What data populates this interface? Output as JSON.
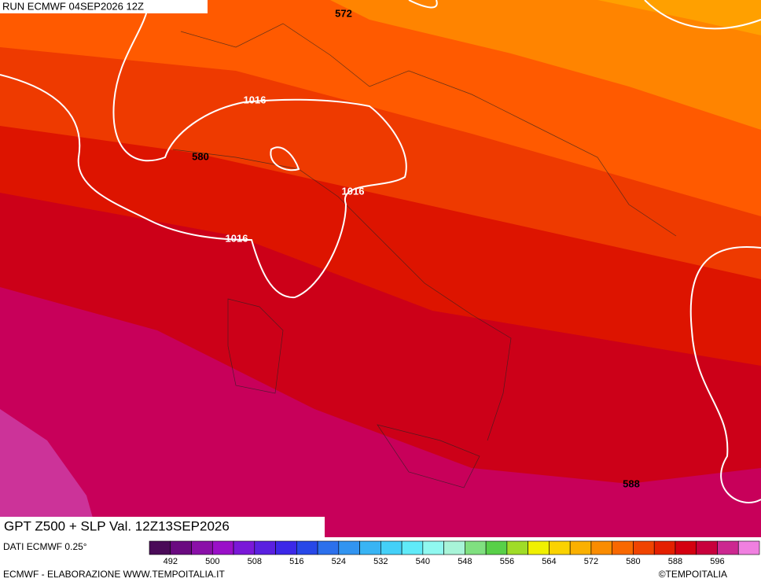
{
  "header": "RUN ECMWF 04SEP2026 12Z",
  "contour_labels": [
    "572",
    "580",
    "1016",
    "1016",
    "1016",
    "588"
  ],
  "title": "GPT Z500 + SLP Val. 12Z13SEP2026",
  "source": "DATI ECMWF 0.25°",
  "colorbar": {
    "range": [
      488,
      604
    ],
    "ticks": [
      492,
      500,
      508,
      516,
      524,
      532,
      540,
      548,
      556,
      564,
      572,
      580,
      588,
      596
    ],
    "colors": [
      "#4a0a58",
      "#6a0a80",
      "#8a10a8",
      "#9a10c8",
      "#7a18d8",
      "#5a20e0",
      "#3c28e8",
      "#2848e8",
      "#2c70ec",
      "#3294f0",
      "#38b4f4",
      "#44d0f8",
      "#60eaf8",
      "#90f8f0",
      "#a8f4d8",
      "#80e080",
      "#58d048",
      "#a0dc28",
      "#f0f000",
      "#fad200",
      "#fab000",
      "#fa8c00",
      "#f86800",
      "#f04400",
      "#e42000",
      "#d40010",
      "#c8003c",
      "#cc2890",
      "#f080e0"
    ]
  },
  "footer_left": "ECMWF - ELABORAZIONE WWW.TEMPOITALIA.IT",
  "footer_right": "©TEMPOITALIA"
}
